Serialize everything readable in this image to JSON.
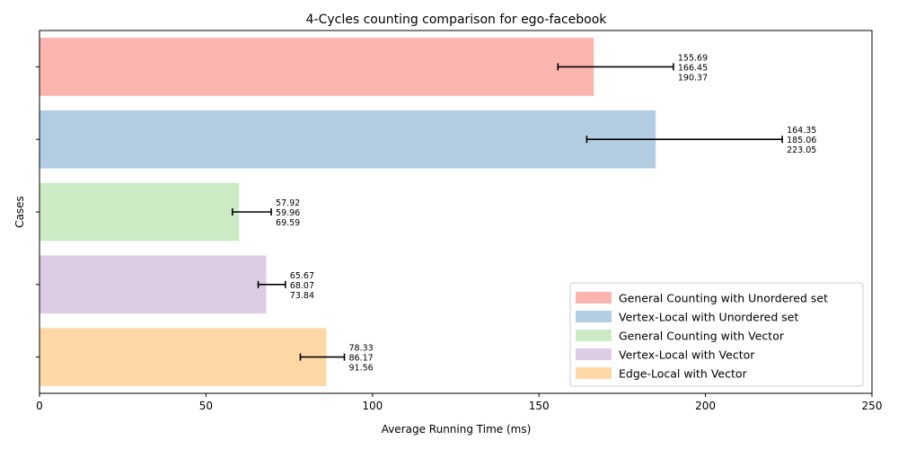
{
  "chart_data": {
    "type": "bar",
    "orientation": "horizontal",
    "title": "4-Cycles counting comparison for ego-facebook",
    "xlabel": "Average Running Time (ms)",
    "ylabel": "Cases",
    "xlim": [
      0,
      250
    ],
    "xticks": [
      "0",
      "50",
      "100",
      "150",
      "200",
      "250"
    ],
    "grid": false,
    "legend_position": "lower-right",
    "series": [
      {
        "name": "General Counting with Unordered set",
        "color": "#fbb4ae",
        "min": 155.69,
        "value": 166.45,
        "max": 190.37,
        "labels": [
          "155.69",
          "166.45",
          "190.37"
        ]
      },
      {
        "name": "Vertex-Local with Unordered set",
        "color": "#b3cde3",
        "min": 164.35,
        "value": 185.06,
        "max": 223.05,
        "labels": [
          "164.35",
          "185.06",
          "223.05"
        ]
      },
      {
        "name": "General Counting with Vector",
        "color": "#ccebc5",
        "min": 57.92,
        "value": 59.96,
        "max": 69.59,
        "labels": [
          "57.92",
          "59.96",
          "69.59"
        ]
      },
      {
        "name": "Vertex-Local with Vector",
        "color": "#decbe4",
        "min": 65.67,
        "value": 68.07,
        "max": 73.84,
        "labels": [
          "65.67",
          "68.07",
          "73.84"
        ]
      },
      {
        "name": "Edge-Local with Vector",
        "color": "#fed9a6",
        "min": 78.33,
        "value": 86.17,
        "max": 91.56,
        "labels": [
          "78.33",
          "86.17",
          "91.56"
        ]
      }
    ]
  }
}
